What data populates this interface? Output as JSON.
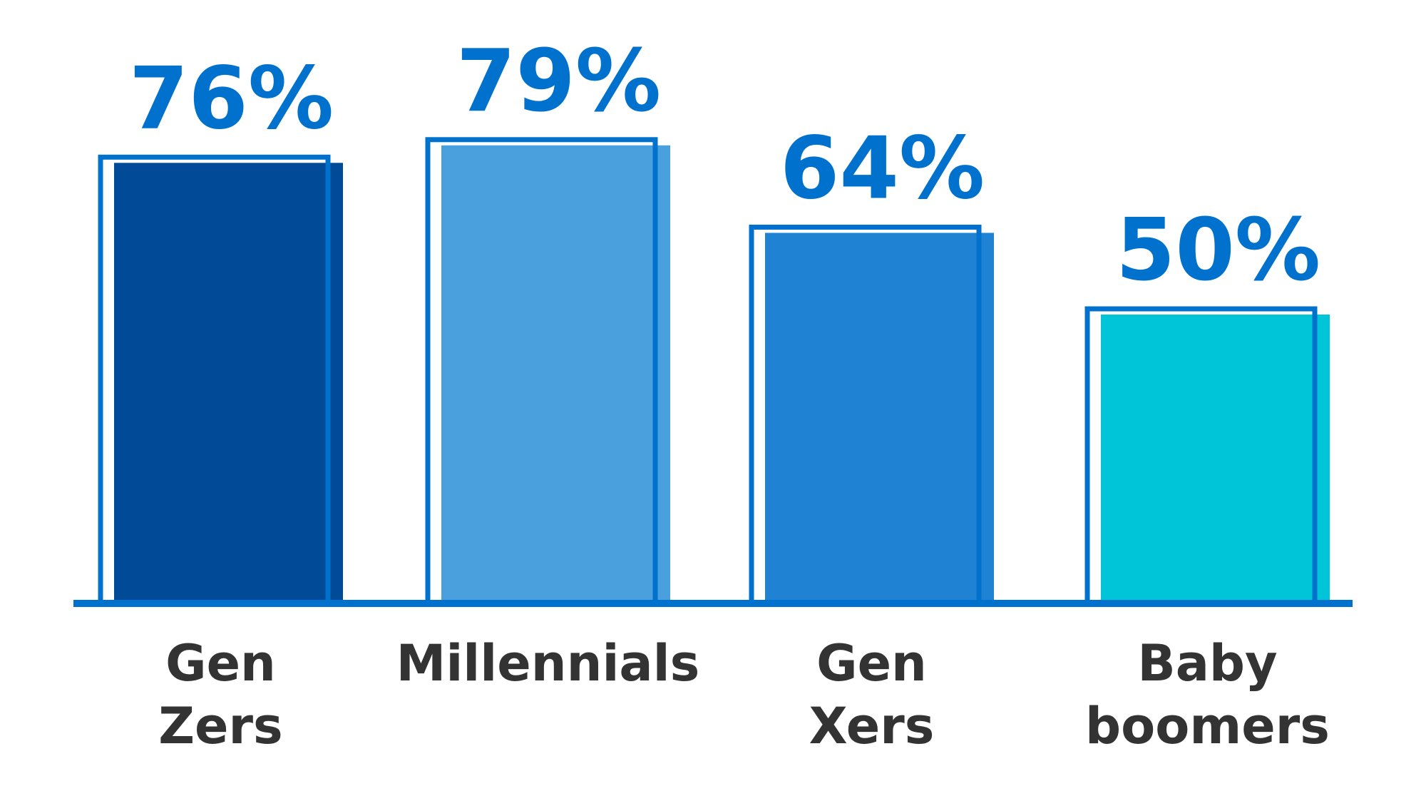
{
  "chart_data": {
    "type": "bar",
    "categories": [
      "Gen Zers",
      "Millennials",
      "Gen Xers",
      "Baby boomers"
    ],
    "values": [
      76,
      79,
      64,
      50
    ],
    "value_labels": [
      "76%",
      "79%",
      "64%",
      "50%"
    ],
    "colors": [
      "#004a97",
      "#4a9fdd",
      "#1f82d2",
      "#00c4d7"
    ],
    "outline_color": "#0072ce"
  }
}
